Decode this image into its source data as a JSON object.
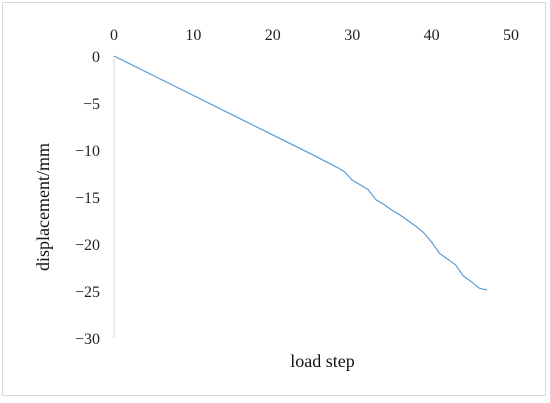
{
  "chart_data": {
    "type": "line",
    "title": "",
    "xlabel": "load step",
    "ylabel": "displacement/mm",
    "x_axis_position": "top",
    "xlim": [
      0,
      50
    ],
    "ylim": [
      -30,
      0
    ],
    "x_ticks": [
      0,
      10,
      20,
      30,
      40,
      50
    ],
    "y_ticks": [
      0,
      -5,
      -10,
      -15,
      -20,
      -25,
      -30
    ],
    "x_tick_labels": [
      "0",
      "10",
      "20",
      "30",
      "40",
      "50"
    ],
    "y_tick_labels": [
      "0",
      "−5",
      "−10",
      "−15",
      "−20",
      "−25",
      "−30"
    ],
    "grid": false,
    "legend": "none",
    "series": [
      {
        "color": "#5b9bd5",
        "x": [
          0,
          5,
          10,
          15,
          20,
          25,
          28,
          29,
          30,
          31,
          32,
          33,
          34,
          35,
          36,
          37,
          38,
          39,
          40,
          41,
          42,
          43,
          44,
          45,
          46,
          47
        ],
        "y": [
          0,
          -2.1,
          -4.2,
          -6.3,
          -8.4,
          -10.5,
          -11.8,
          -12.3,
          -13.2,
          -13.7,
          -14.2,
          -15.3,
          -15.8,
          -16.4,
          -16.9,
          -17.5,
          -18.1,
          -18.8,
          -19.8,
          -21.0,
          -21.6,
          -22.2,
          -23.4,
          -24.0,
          -24.7,
          -24.9
        ]
      }
    ]
  }
}
